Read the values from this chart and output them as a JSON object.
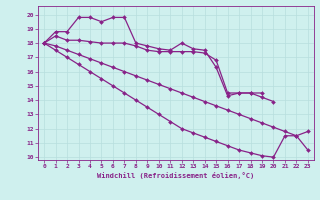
{
  "background_color": "#cff0ee",
  "grid_color": "#b8dede",
  "line_color": "#882288",
  "marker": "D",
  "markersize": 2.0,
  "linewidth": 0.9,
  "xlim": [
    -0.5,
    23.5
  ],
  "ylim": [
    9.8,
    20.6
  ],
  "xticks": [
    0,
    1,
    2,
    3,
    4,
    5,
    6,
    7,
    8,
    9,
    10,
    11,
    12,
    13,
    14,
    15,
    16,
    17,
    18,
    19,
    20,
    21,
    22,
    23
  ],
  "yticks": [
    10,
    11,
    12,
    13,
    14,
    15,
    16,
    17,
    18,
    19,
    20
  ],
  "xlabel": "Windchill (Refroidissement éolien,°C)",
  "series": [
    [
      18.0,
      18.8,
      18.8,
      19.8,
      19.8,
      19.5,
      19.8,
      19.8,
      18.0,
      17.8,
      17.6,
      17.5,
      18.0,
      17.6,
      17.5,
      16.3,
      14.3,
      14.5,
      14.5,
      14.5,
      null,
      null,
      null,
      null
    ],
    [
      18.0,
      18.5,
      18.2,
      18.2,
      18.1,
      18.0,
      18.0,
      18.0,
      17.8,
      17.5,
      17.4,
      17.4,
      17.4,
      17.4,
      17.3,
      16.8,
      14.5,
      14.5,
      14.5,
      14.2,
      13.9,
      null,
      null,
      null
    ],
    [
      18.0,
      17.8,
      17.5,
      17.2,
      16.9,
      16.6,
      16.3,
      16.0,
      15.7,
      15.4,
      15.1,
      14.8,
      14.5,
      14.2,
      13.9,
      13.6,
      13.3,
      13.0,
      12.7,
      12.4,
      12.1,
      11.8,
      11.5,
      11.8
    ],
    [
      18.0,
      17.5,
      17.0,
      16.5,
      16.0,
      15.5,
      15.0,
      14.5,
      14.0,
      13.5,
      13.0,
      12.5,
      12.0,
      11.7,
      11.4,
      11.1,
      10.8,
      10.5,
      10.3,
      10.1,
      10.0,
      11.5,
      11.5,
      10.5
    ]
  ]
}
